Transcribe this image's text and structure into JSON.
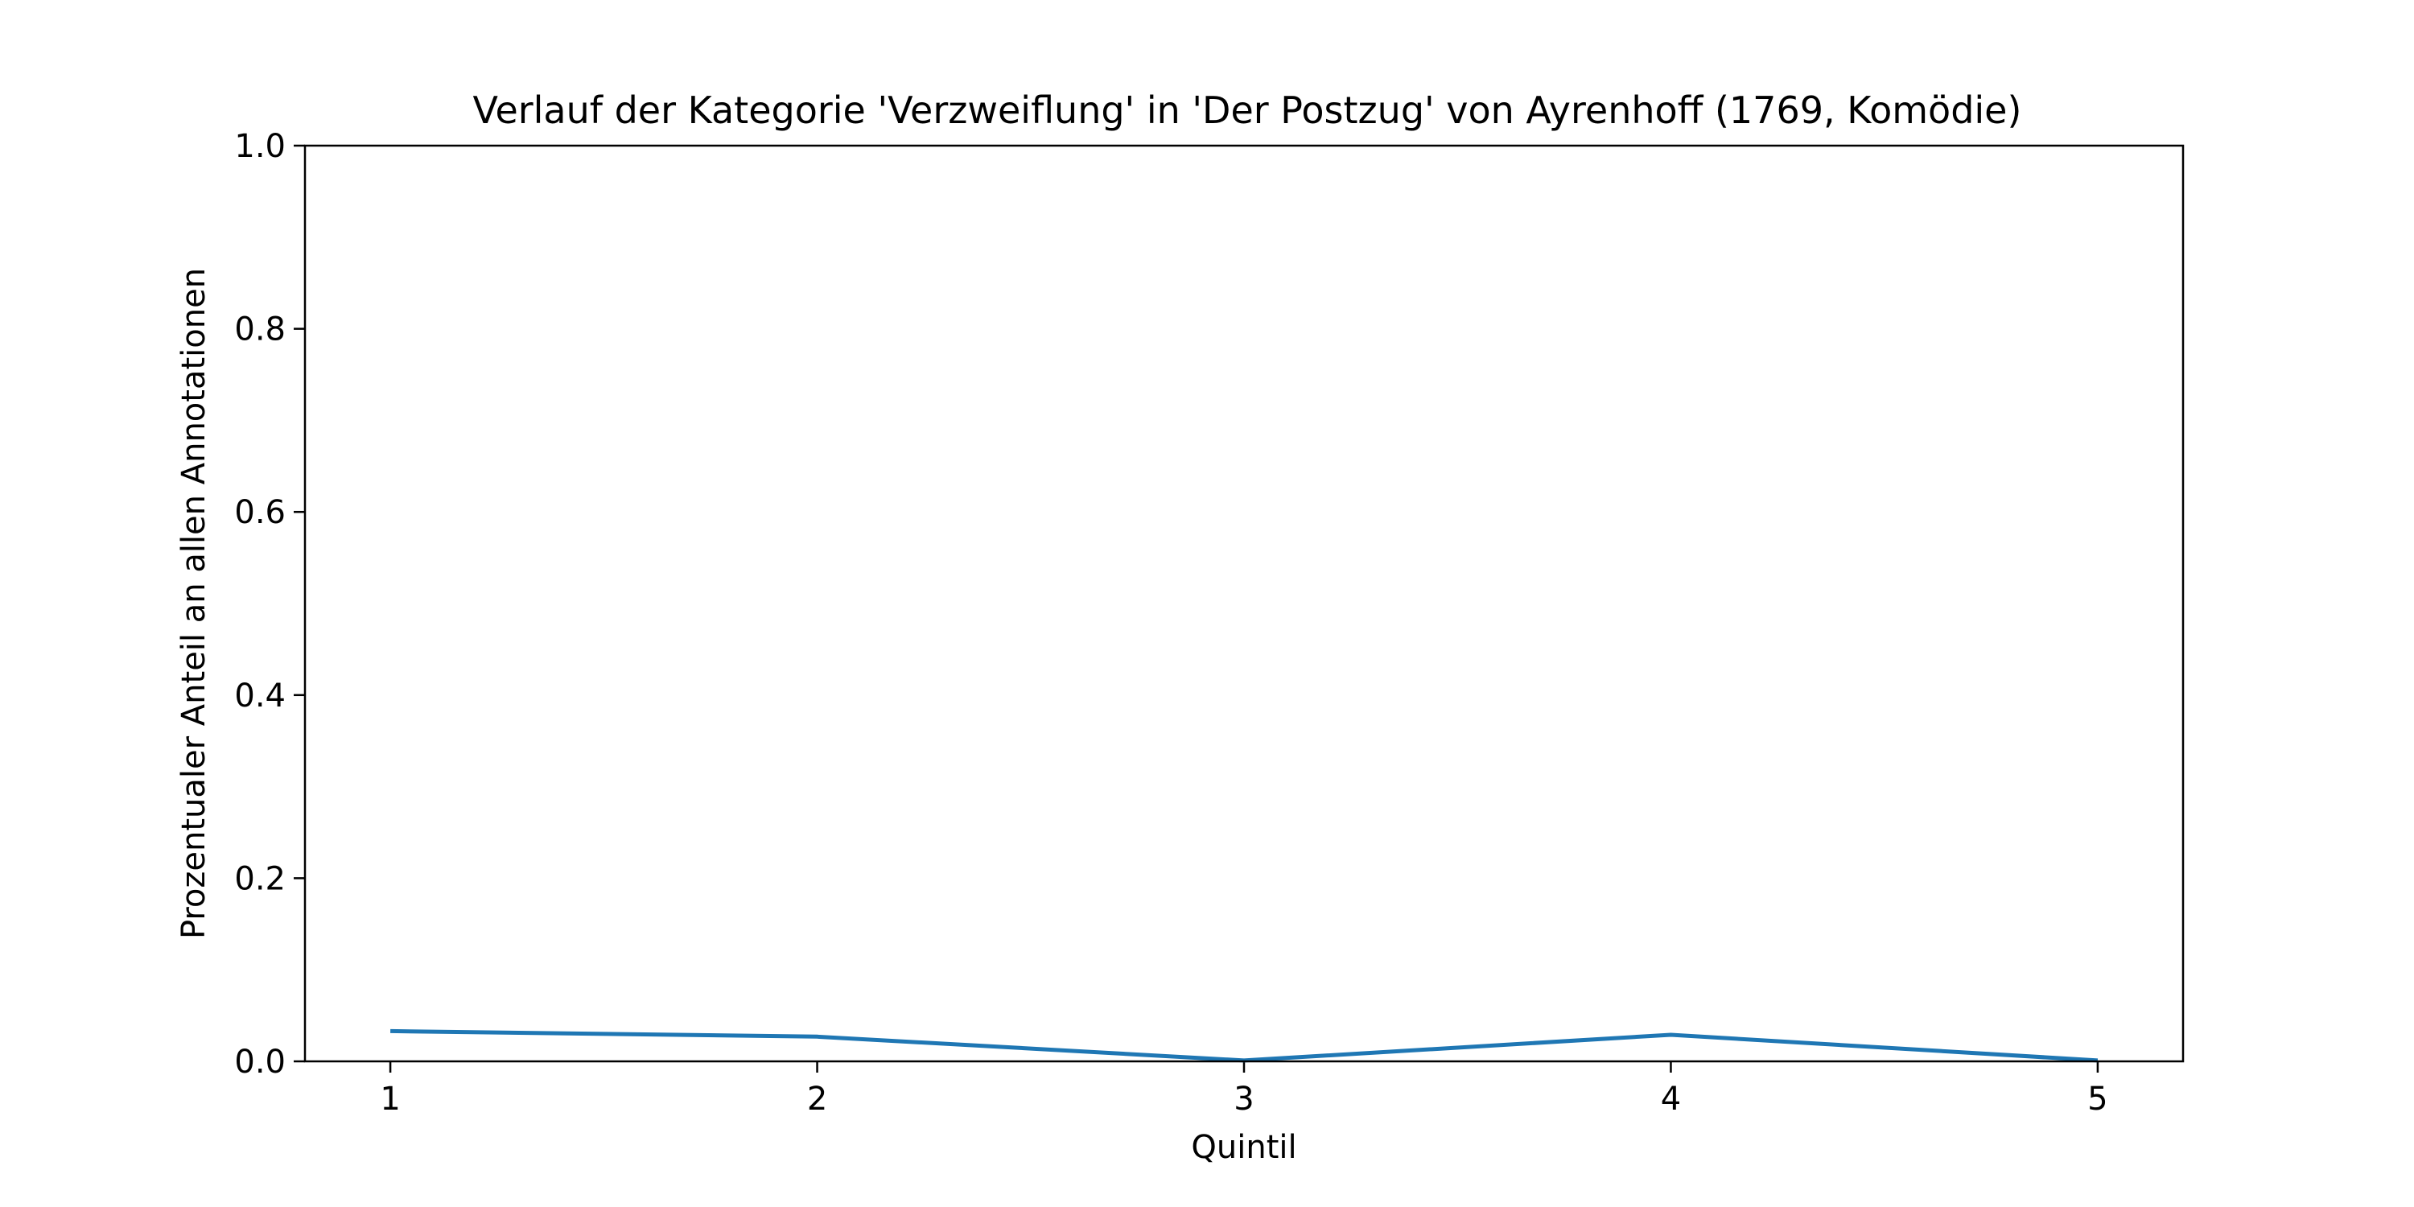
{
  "chart_data": {
    "type": "line",
    "title": "Verlauf der Kategorie 'Verzweiflung' in 'Der Postzug' von Ayrenhoff (1769, Komödie)",
    "xlabel": "Quintil",
    "ylabel": "Prozentualer Anteil an allen Annotationen",
    "x": [
      1,
      2,
      3,
      4,
      5
    ],
    "x_tick_labels": [
      "1",
      "2",
      "3",
      "4",
      "5"
    ],
    "xlim": [
      0.8,
      5.2
    ],
    "ylim": [
      0,
      1.0
    ],
    "y_ticks": [
      0.0,
      0.2,
      0.4,
      0.6,
      0.8,
      1.0
    ],
    "y_tick_labels": [
      "0.0",
      "0.2",
      "0.4",
      "0.6",
      "0.8",
      "1.0"
    ],
    "grid": false,
    "legend": "none",
    "series": [
      {
        "values": [
          0.033,
          0.027,
          0.001,
          0.029,
          0.001
        ],
        "color": "#1f77b4"
      }
    ]
  }
}
